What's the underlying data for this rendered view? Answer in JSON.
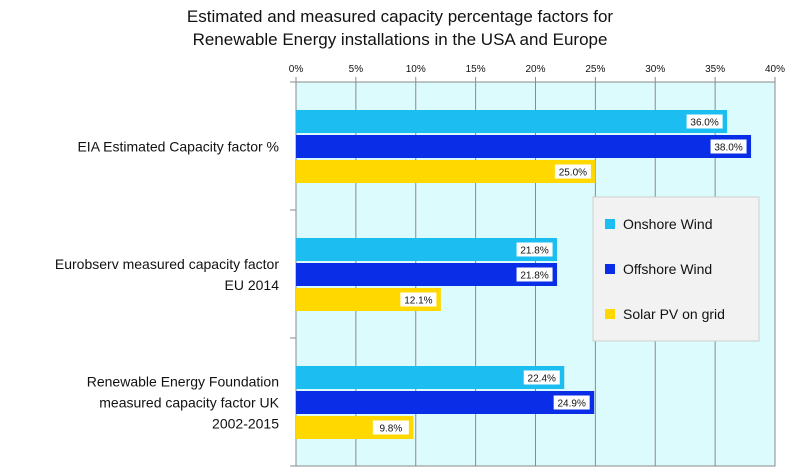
{
  "chart_data": {
    "type": "bar",
    "orientation": "horizontal",
    "title_lines": [
      "Estimated and measured capacity percentage factors for",
      "Renewable Energy installations in the USA and Europe"
    ],
    "xlim": [
      0,
      40
    ],
    "x_ticks": [
      "0%",
      "5%",
      "10%",
      "15%",
      "20%",
      "25%",
      "30%",
      "35%",
      "40%"
    ],
    "categories": [
      {
        "lines": [
          "EIA Estimated Capacity factor %"
        ]
      },
      {
        "lines": [
          "Eurobserv measured capacity factor",
          "EU 2014"
        ]
      },
      {
        "lines": [
          "Renewable Energy Foundation",
          "measured capacity factor UK",
          "2002-2015"
        ]
      }
    ],
    "series": [
      {
        "name": "Onshore Wind",
        "color": "#1cbef2",
        "values": [
          36.0,
          21.8,
          22.4
        ],
        "labels": [
          "36.0%",
          "21.8%",
          "22.4%"
        ]
      },
      {
        "name": "Offshore Wind",
        "color": "#0a2ee8",
        "values": [
          38.0,
          21.8,
          24.9
        ],
        "labels": [
          "38.0%",
          "21.8%",
          "24.9%"
        ]
      },
      {
        "name": "Solar PV on grid",
        "color": "#ffd800",
        "values": [
          25.0,
          12.1,
          9.8
        ],
        "labels": [
          "25.0%",
          "12.1%",
          "9.8%"
        ]
      }
    ],
    "legend_position": "right-middle",
    "plot_background": "#dcfbfd",
    "grid": true
  }
}
